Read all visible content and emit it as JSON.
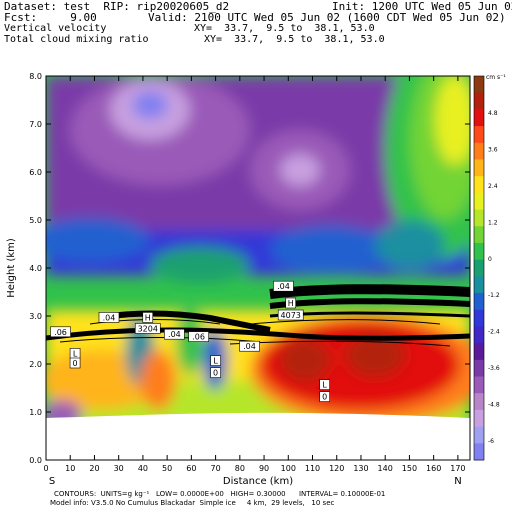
{
  "header": {
    "dataset": "Dataset: test  RIP: rip20020605_d2",
    "init": "Init: 1200 UTC Wed 05 Jun 02",
    "fcst": "Fcst:     9.00",
    "valid": "Valid: 2100 UTC Wed 05 Jun 02 (1600 CDT Wed 05 Jun 02)",
    "field1": "Vertical velocity",
    "xy1": "XY=  33.7,  9.5 to  38.1, 53.0",
    "field2": "Total cloud mixing ratio",
    "xy2": "XY=  33.7,  9.5 to  38.1, 53.0"
  },
  "chart_data": {
    "type": "heatmap",
    "xlabel": "Distance (km)",
    "ylabel": "Height (km)",
    "xlim": [
      0,
      175
    ],
    "ylim": [
      0,
      8
    ],
    "x_ticks": [
      "0",
      "10",
      "20",
      "30",
      "40",
      "50",
      "60",
      "70",
      "80",
      "90",
      "100",
      "110",
      "120",
      "130",
      "140",
      "150",
      "160",
      "170"
    ],
    "y_ticks": [
      "0.0",
      "1.0",
      "2.0",
      "3.0",
      "4.0",
      "5.0",
      "6.0",
      "7.0",
      "8.0"
    ],
    "left_end": "S",
    "right_end": "N",
    "colorbar": {
      "units": "cm s⁻¹",
      "labels": [
        "4.8",
        "3.6",
        "2.4",
        "1.2",
        "0",
        "-1.2",
        "-2.4",
        "-3.6",
        "-4.8",
        "-6"
      ],
      "colors": [
        "#8b3a12",
        "#b3200e",
        "#e21010",
        "#ff4a1a",
        "#ff7e1a",
        "#ffb41a",
        "#ffe21a",
        "#e8f020",
        "#b6e62a",
        "#72d436",
        "#30c24c",
        "#1aa070",
        "#1a8fa0",
        "#2060d0",
        "#3038d8",
        "#4028c8",
        "#5a1a9a",
        "#7a3aa8",
        "#9a5ab8",
        "#b886c8",
        "#c8a0e0",
        "#a0a0f0",
        "#8080f0"
      ]
    },
    "labels": [
      {
        "text": "H",
        "x": 42,
        "y": 2.95
      },
      {
        "text": "3204",
        "x": 42,
        "y": 2.72
      },
      {
        "text": "H",
        "x": 101,
        "y": 3.25
      },
      {
        "text": "4073",
        "x": 101,
        "y": 3.0
      },
      {
        "text": "L",
        "x": 12,
        "y": 2.2
      },
      {
        "text": "0",
        "x": 12,
        "y": 2.0
      },
      {
        "text": "L",
        "x": 70,
        "y": 2.05
      },
      {
        "text": "0",
        "x": 70,
        "y": 1.8
      },
      {
        "text": "L",
        "x": 115,
        "y": 1.55
      },
      {
        "text": "0",
        "x": 115,
        "y": 1.3
      },
      {
        "text": ".06",
        "x": 6,
        "y": 2.65
      },
      {
        "text": ".04",
        "x": 26,
        "y": 2.95
      },
      {
        "text": ".04",
        "x": 53,
        "y": 2.6
      },
      {
        "text": ".06",
        "x": 63,
        "y": 2.55
      },
      {
        "text": ".04",
        "x": 84,
        "y": 2.35
      },
      {
        "text": ".04",
        "x": 98,
        "y": 3.6
      }
    ]
  },
  "footer": {
    "line1": "CONTOURS:  UNITS=g kg⁻¹   LOW= 0.0000E+00   HIGH= 0.30000      INTERVAL= 0.10000E-01",
    "line2": "Model info: V3.5.0 No Cumulus Blackadar  Simple ice     4 km,  29 levels,   10 sec"
  }
}
